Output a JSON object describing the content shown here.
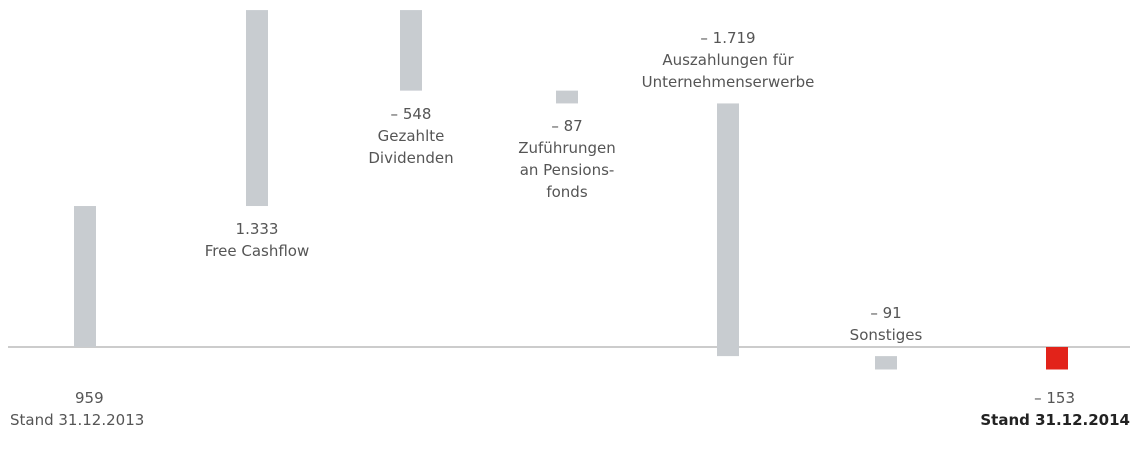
{
  "chart_data": {
    "type": "waterfall",
    "categories": [
      "Stand 31.12.2013",
      "Free Cashflow",
      "Gezahlte\nDividenden",
      "Zuführungen\nan Pensions-\nfonds",
      "Auszahlungen für\nUnternehmenserwerbe",
      "Sonstiges",
      "Stand 31.12.2014"
    ],
    "values": [
      959,
      1333,
      -548,
      -87,
      -1719,
      -91,
      -153
    ],
    "value_labels": [
      "959",
      "1.333",
      "– 548",
      "– 87",
      "– 1.719",
      "– 91",
      "– 153"
    ],
    "colors": [
      "#c8ccd0",
      "#c8ccd0",
      "#c8ccd0",
      "#c8ccd0",
      "#c8ccd0",
      "#c8ccd0",
      "#e2231a"
    ]
  }
}
